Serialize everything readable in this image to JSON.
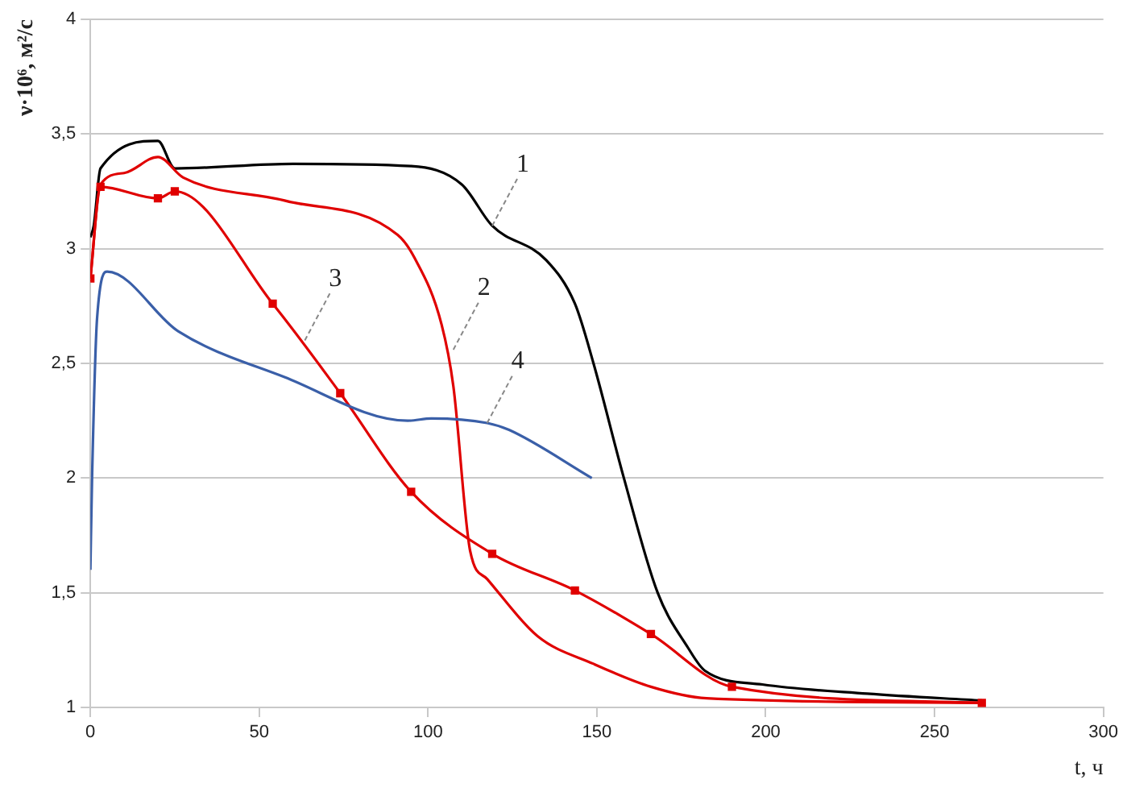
{
  "chart_data": {
    "type": "line",
    "xlabel": "t, ч",
    "ylabel": "ν·10⁶, м²/с",
    "xlim": [
      0,
      300
    ],
    "xticks": [
      0,
      50,
      100,
      150,
      200,
      250,
      300
    ],
    "ylim": [
      1,
      4
    ],
    "yticks": [
      1,
      {
        "value": 1.5,
        "label": "1,5"
      },
      2,
      {
        "value": 2.5,
        "label": "2,5"
      },
      3,
      {
        "value": 3.5,
        "label": "3,5"
      },
      4
    ],
    "grid": "y",
    "legend": false,
    "line_style": "solid",
    "series": [
      {
        "color": "#000000",
        "marker": "none",
        "x": [
          0,
          1,
          3,
          20,
          25,
          60,
          95,
          110,
          119,
          135,
          143.5,
          149,
          158,
          168,
          177,
          182,
          199,
          230,
          264
        ],
        "values": [
          3.05,
          3.1,
          3.35,
          3.47,
          3.35,
          3.37,
          3.36,
          3.28,
          3.1,
          2.95,
          2.76,
          2.5,
          2,
          1.5,
          1.26,
          1.16,
          1.1,
          1.06,
          1.03
        ]
      },
      {
        "color": "#e00000",
        "marker": "none",
        "x": [
          0,
          3,
          10,
          20,
          27.5,
          57.5,
          91,
          96,
          104,
          107.5,
          112.5,
          117.5,
          132.5,
          149,
          166,
          182.5,
          264
        ],
        "values": [
          2.87,
          3.28,
          3.33,
          3.4,
          3.31,
          3.21,
          3.06,
          2.96,
          2.67,
          2.4,
          1.68,
          1.56,
          1.31,
          1.19,
          1.09,
          1.04,
          1.02
        ]
      },
      {
        "color": "#e00000",
        "marker": "square",
        "x": [
          0,
          3,
          20,
          25,
          54,
          74,
          95,
          119,
          143.5,
          166,
          190,
          264
        ],
        "values": [
          2.87,
          3.27,
          3.22,
          3.25,
          2.76,
          2.37,
          1.94,
          1.67,
          1.51,
          1.32,
          1.09,
          1.02
        ]
      },
      {
        "color": "#3a5fa8",
        "marker": "none",
        "x": [
          0,
          0.5,
          2,
          5,
          26,
          57.5,
          94,
          101,
          117.5,
          124,
          148.5
        ],
        "values": [
          1.6,
          2,
          2.7,
          2.9,
          2.64,
          2.44,
          2.25,
          2.26,
          2.24,
          2.21,
          2
        ]
      }
    ],
    "annotations": [
      {
        "text": "1",
        "x": 119,
        "y": 3.1
      },
      {
        "text": "2",
        "x": 107.5,
        "y": 2.56
      },
      {
        "text": "3",
        "x": 63.5,
        "y": 2.6
      },
      {
        "text": "4",
        "x": 117.5,
        "y": 2.24
      }
    ]
  }
}
